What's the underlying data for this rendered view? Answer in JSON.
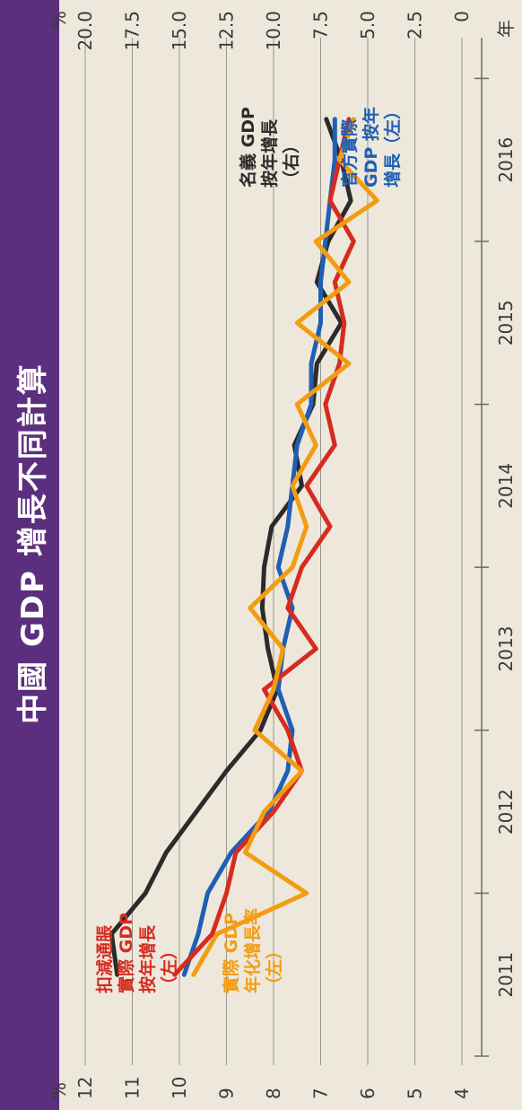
{
  "title": "中國 GDP 增長不同計算",
  "colors": {
    "banner": "#5b2f7d",
    "deflated_real": "#d62b1f",
    "real_annualized": "#f39c12",
    "nominal": "#2b2b2b",
    "official_real": "#1f5fb4"
  },
  "legend": {
    "deflated_real": [
      "扣減通脹",
      "實際 GDP",
      "按年增長",
      "（左）"
    ],
    "real_annualized": [
      "實際 GDP",
      "年化增長率",
      "（左）"
    ],
    "nominal": [
      "名義 GDP",
      "按年增長",
      "（右）"
    ],
    "official_real": [
      "官方實際",
      "GDP 按年",
      "增長（左）"
    ]
  },
  "chart_data": {
    "type": "line",
    "title": "中國 GDP 增長不同計算",
    "xlabel": "年",
    "left_axis": {
      "unit": "%",
      "range": [
        4,
        12
      ],
      "ticks": [
        "4",
        "5",
        "6",
        "7",
        "8",
        "9",
        "10",
        "11",
        "12"
      ]
    },
    "right_axis": {
      "unit": "%",
      "range": [
        0,
        20
      ],
      "ticks": [
        "0",
        "2.5",
        "5.0",
        "7.5",
        "10.0",
        "12.5",
        "15.0",
        "17.5",
        "20.0"
      ]
    },
    "x_ticks": [
      "2011",
      "2012",
      "2013",
      "2014",
      "2015",
      "2016"
    ],
    "x_range": [
      2010.5,
      2016.75
    ],
    "grid": true,
    "series": [
      {
        "key": "official_real",
        "axis": "left",
        "x": [
          2011.0,
          2011.25,
          2011.5,
          2011.75,
          2012.0,
          2012.25,
          2012.5,
          2012.75,
          2013.0,
          2013.25,
          2013.5,
          2013.75,
          2014.0,
          2014.25,
          2014.5,
          2014.75,
          2015.0,
          2015.25,
          2015.5,
          2015.75,
          2016.0,
          2016.25
        ],
        "y": [
          9.9,
          9.6,
          9.4,
          8.9,
          8.1,
          7.7,
          7.6,
          7.9,
          7.8,
          7.6,
          7.9,
          7.7,
          7.6,
          7.5,
          7.2,
          7.2,
          7.0,
          7.0,
          6.9,
          6.8,
          6.7,
          6.7
        ]
      },
      {
        "key": "deflated_real",
        "axis": "left",
        "x": [
          2011.0,
          2011.25,
          2011.5,
          2011.75,
          2012.0,
          2012.25,
          2012.5,
          2012.75,
          2013.0,
          2013.25,
          2013.5,
          2013.75,
          2014.0,
          2014.25,
          2014.5,
          2014.75,
          2015.0,
          2015.25,
          2015.5,
          2015.75,
          2016.0,
          2016.25
        ],
        "y": [
          10.1,
          9.3,
          9.0,
          8.8,
          8.0,
          7.4,
          7.7,
          8.2,
          7.1,
          7.7,
          7.4,
          6.8,
          7.3,
          6.7,
          6.9,
          6.6,
          6.5,
          6.7,
          6.3,
          6.8,
          6.6,
          6.4
        ]
      },
      {
        "key": "real_annualized",
        "axis": "left",
        "x": [
          2011.0,
          2011.25,
          2011.5,
          2011.75,
          2012.0,
          2012.25,
          2012.5,
          2012.75,
          2013.0,
          2013.25,
          2013.5,
          2013.75,
          2014.0,
          2014.25,
          2014.5,
          2014.75,
          2015.0,
          2015.25,
          2015.5,
          2015.75,
          2016.0,
          2016.25
        ],
        "y": [
          9.7,
          9.2,
          7.3,
          8.6,
          8.2,
          7.4,
          8.4,
          8.0,
          7.8,
          8.5,
          7.6,
          7.3,
          7.6,
          7.1,
          7.5,
          6.4,
          7.5,
          6.4,
          7.1,
          5.8,
          6.6,
          6.3
        ]
      },
      {
        "key": "nominal",
        "axis": "right",
        "x": [
          2011.0,
          2011.25,
          2011.5,
          2011.75,
          2012.0,
          2012.25,
          2012.5,
          2012.75,
          2013.0,
          2013.25,
          2013.5,
          2013.75,
          2014.0,
          2014.25,
          2014.5,
          2014.75,
          2015.0,
          2015.25,
          2015.5,
          2015.75,
          2016.0,
          2016.25
        ],
        "y": [
          18.3,
          18.6,
          16.8,
          15.7,
          14.1,
          12.5,
          10.7,
          9.8,
          10.3,
          10.6,
          10.5,
          10.1,
          8.5,
          8.9,
          7.9,
          7.7,
          6.4,
          7.7,
          7.1,
          5.9,
          6.4,
          7.2
        ]
      }
    ]
  }
}
